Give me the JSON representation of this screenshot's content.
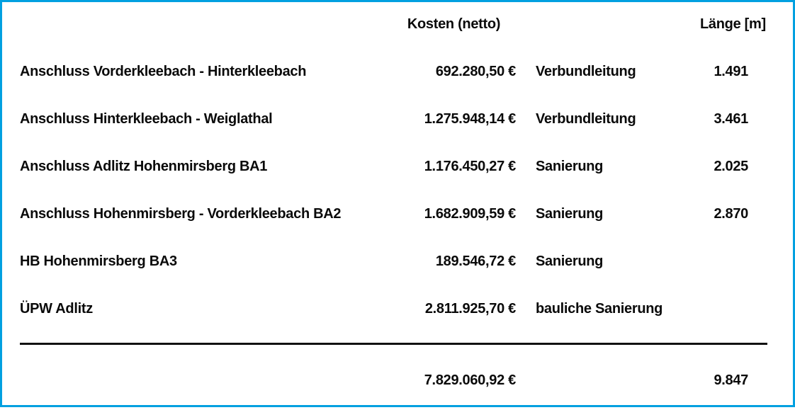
{
  "colors": {
    "frame_border": "#00a0e0",
    "text": "#0a0a0a",
    "divider": "#111111",
    "background": "#ffffff"
  },
  "chart_data": {
    "type": "table",
    "title": "",
    "columns": [
      "",
      "Kosten (netto)",
      "",
      "Länge [m]"
    ],
    "rows": [
      [
        "Anschluss Vorderkleebach - Hinterkleebach",
        "692.280,50 €",
        "Verbundleitung",
        "1.491"
      ],
      [
        "Anschluss Hinterkleebach - Weiglathal",
        "1.275.948,14 €",
        "Verbundleitung",
        "3.461"
      ],
      [
        "Anschluss Adlitz Hohenmirsberg BA1",
        "1.176.450,27 €",
        "Sanierung",
        "2.025"
      ],
      [
        "Anschluss Hohenmirsberg - Vorderkleebach BA2",
        "1.682.909,59 €",
        "Sanierung",
        "2.870"
      ],
      [
        "HB Hohenmirsberg BA3",
        "189.546,72 €",
        "Sanierung",
        ""
      ],
      [
        "ÜPW Adlitz",
        "2.811.925,70 €",
        "bauliche Sanierung",
        ""
      ]
    ],
    "total_row": [
      "",
      "7.829.060,92 €",
      "",
      "9.847"
    ],
    "numeric": {
      "kosten_eur": [
        692280.5,
        1275948.14,
        1176450.27,
        1682909.59,
        189546.72,
        2811925.7
      ],
      "laenge_m": [
        1491,
        3461,
        2025,
        2870,
        null,
        null
      ],
      "total_kosten_eur": 7829060.92,
      "total_laenge_m": 9847
    },
    "layout": {
      "grid": false,
      "legend": "none"
    }
  }
}
